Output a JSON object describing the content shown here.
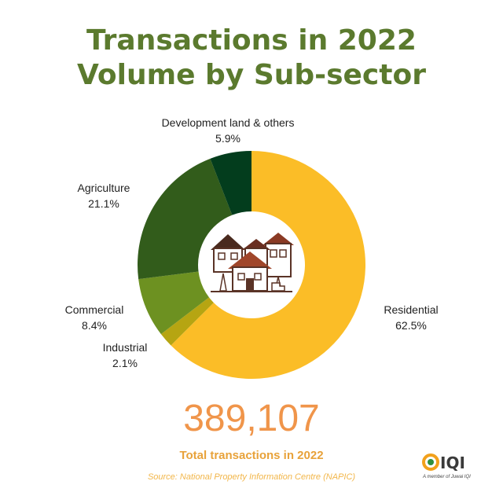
{
  "title_line1": "Transactions in 2022",
  "title_line2": "Volume by Sub-sector",
  "chart_data": {
    "type": "pie",
    "donut": true,
    "slices": [
      {
        "name": "Residential",
        "value": 62.5,
        "label": "62.5%",
        "color": "#fbbd27"
      },
      {
        "name": "Industrial",
        "value": 2.1,
        "label": "2.1%",
        "color": "#b6a512"
      },
      {
        "name": "Commercial",
        "value": 8.4,
        "label": "8.4%",
        "color": "#6d9121"
      },
      {
        "name": "Agriculture",
        "value": 21.1,
        "label": "21.1%",
        "color": "#325c1b"
      },
      {
        "name": "Development land & others",
        "value": 5.9,
        "label": "5.9%",
        "color": "#033d1d"
      }
    ]
  },
  "total": {
    "value": "389,107",
    "caption": "Total transactions in 2022"
  },
  "source": "Source: National Property Information Centre (NAPIC)",
  "logo": {
    "text": "IQI",
    "tagline": "A member of Juwai IQI"
  }
}
